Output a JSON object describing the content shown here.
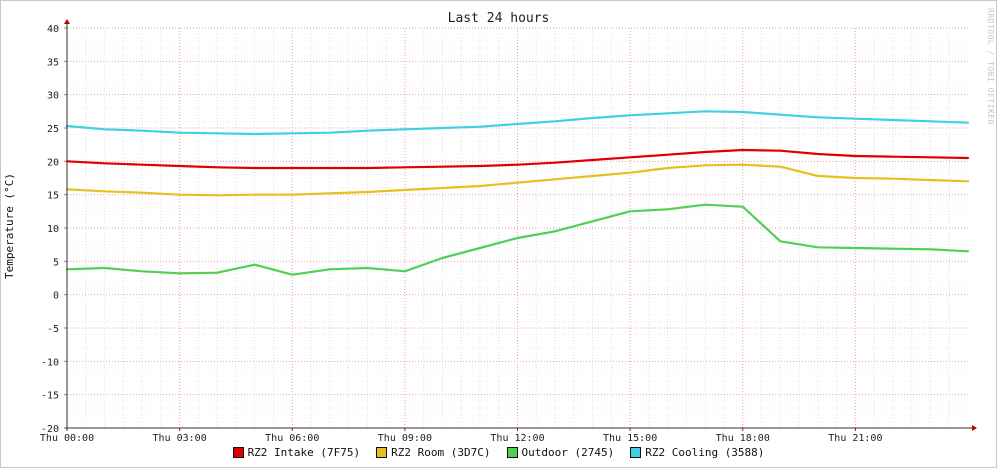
{
  "chart_data": {
    "type": "line",
    "title": "Last 24 hours",
    "ylabel": "Temperature (°C)",
    "xlabel": "",
    "watermark": "RRDTOOL / TOBI OETIKER",
    "ylim": [
      -20,
      40
    ],
    "yticks": [
      "40",
      "35",
      "30",
      "25",
      "20",
      "15",
      "10",
      "5",
      "0",
      "-5",
      "-10",
      "-15",
      "-20"
    ],
    "xticks": [
      "Thu 00:00",
      "Thu 03:00",
      "Thu 06:00",
      "Thu 09:00",
      "Thu 12:00",
      "Thu 15:00",
      "Thu 18:00",
      "Thu 21:00"
    ],
    "x_hours": [
      0,
      1,
      2,
      3,
      4,
      5,
      6,
      7,
      8,
      9,
      10,
      11,
      12,
      13,
      14,
      15,
      16,
      17,
      18,
      19,
      20,
      21,
      22,
      23,
      24
    ],
    "grid": true,
    "legend_position": "bottom",
    "series": [
      {
        "name": "RZ2 Intake (7F75)",
        "color": "#e00000",
        "values": [
          20.0,
          19.7,
          19.5,
          19.3,
          19.1,
          19.0,
          19.0,
          19.0,
          19.0,
          19.1,
          19.2,
          19.3,
          19.5,
          19.8,
          20.2,
          20.6,
          21.0,
          21.4,
          21.7,
          21.6,
          21.1,
          20.8,
          20.7,
          20.6,
          20.5
        ]
      },
      {
        "name": "RZ2 Room (3D7C)",
        "color": "#e5c020",
        "values": [
          15.8,
          15.5,
          15.3,
          15.0,
          14.9,
          15.0,
          15.0,
          15.2,
          15.4,
          15.7,
          16.0,
          16.3,
          16.8,
          17.3,
          17.8,
          18.3,
          19.0,
          19.4,
          19.5,
          19.2,
          17.8,
          17.5,
          17.4,
          17.2,
          17.0
        ]
      },
      {
        "name": "Outdoor (2745)",
        "color": "#50d050",
        "values": [
          3.8,
          4.0,
          3.5,
          3.2,
          3.3,
          4.5,
          3.0,
          3.8,
          4.0,
          3.5,
          5.5,
          7.0,
          8.5,
          9.5,
          11.0,
          12.5,
          12.8,
          13.5,
          13.2,
          8.0,
          7.1,
          7.0,
          6.9,
          6.8,
          6.5
        ]
      },
      {
        "name": "RZ2 Cooling (3588)",
        "color": "#40d0e0",
        "values": [
          25.3,
          24.8,
          24.6,
          24.3,
          24.2,
          24.1,
          24.2,
          24.3,
          24.6,
          24.8,
          25.0,
          25.2,
          25.6,
          26.0,
          26.5,
          26.9,
          27.2,
          27.5,
          27.4,
          27.0,
          26.6,
          26.4,
          26.2,
          26.0,
          25.8
        ]
      }
    ]
  }
}
